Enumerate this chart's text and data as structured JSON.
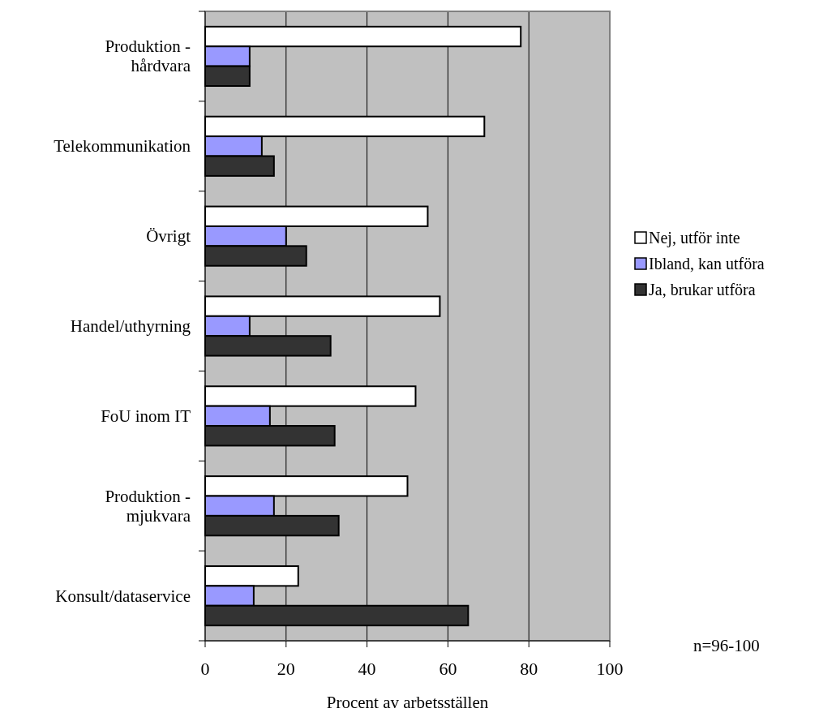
{
  "chart_data": {
    "type": "bar",
    "orientation": "horizontal",
    "xlabel": "Procent av arbetsställen",
    "categories": [
      "Produktion -\nhårdvara",
      "Telekommunikation",
      "Övrigt",
      "Handel/uthyrning",
      "FoU inom IT",
      "Produktion -\nmjukvara",
      "Konsult/dataservice"
    ],
    "series": [
      {
        "name": "Nej, utför inte",
        "color": "#ffffff",
        "values": [
          78,
          69,
          55,
          58,
          52,
          50,
          23
        ]
      },
      {
        "name": "Ibland, kan utföra",
        "color": "#9999ff",
        "values": [
          11,
          14,
          20,
          11,
          16,
          17,
          12
        ]
      },
      {
        "name": "Ja, brukar utföra",
        "color": "#333333",
        "values": [
          11,
          17,
          25,
          31,
          32,
          33,
          65
        ]
      }
    ],
    "xlim": [
      0,
      100
    ],
    "xticks": [
      0,
      20,
      40,
      60,
      80,
      100
    ],
    "grid": "x",
    "legend": "right",
    "annotations": [
      "n=96-100"
    ]
  }
}
